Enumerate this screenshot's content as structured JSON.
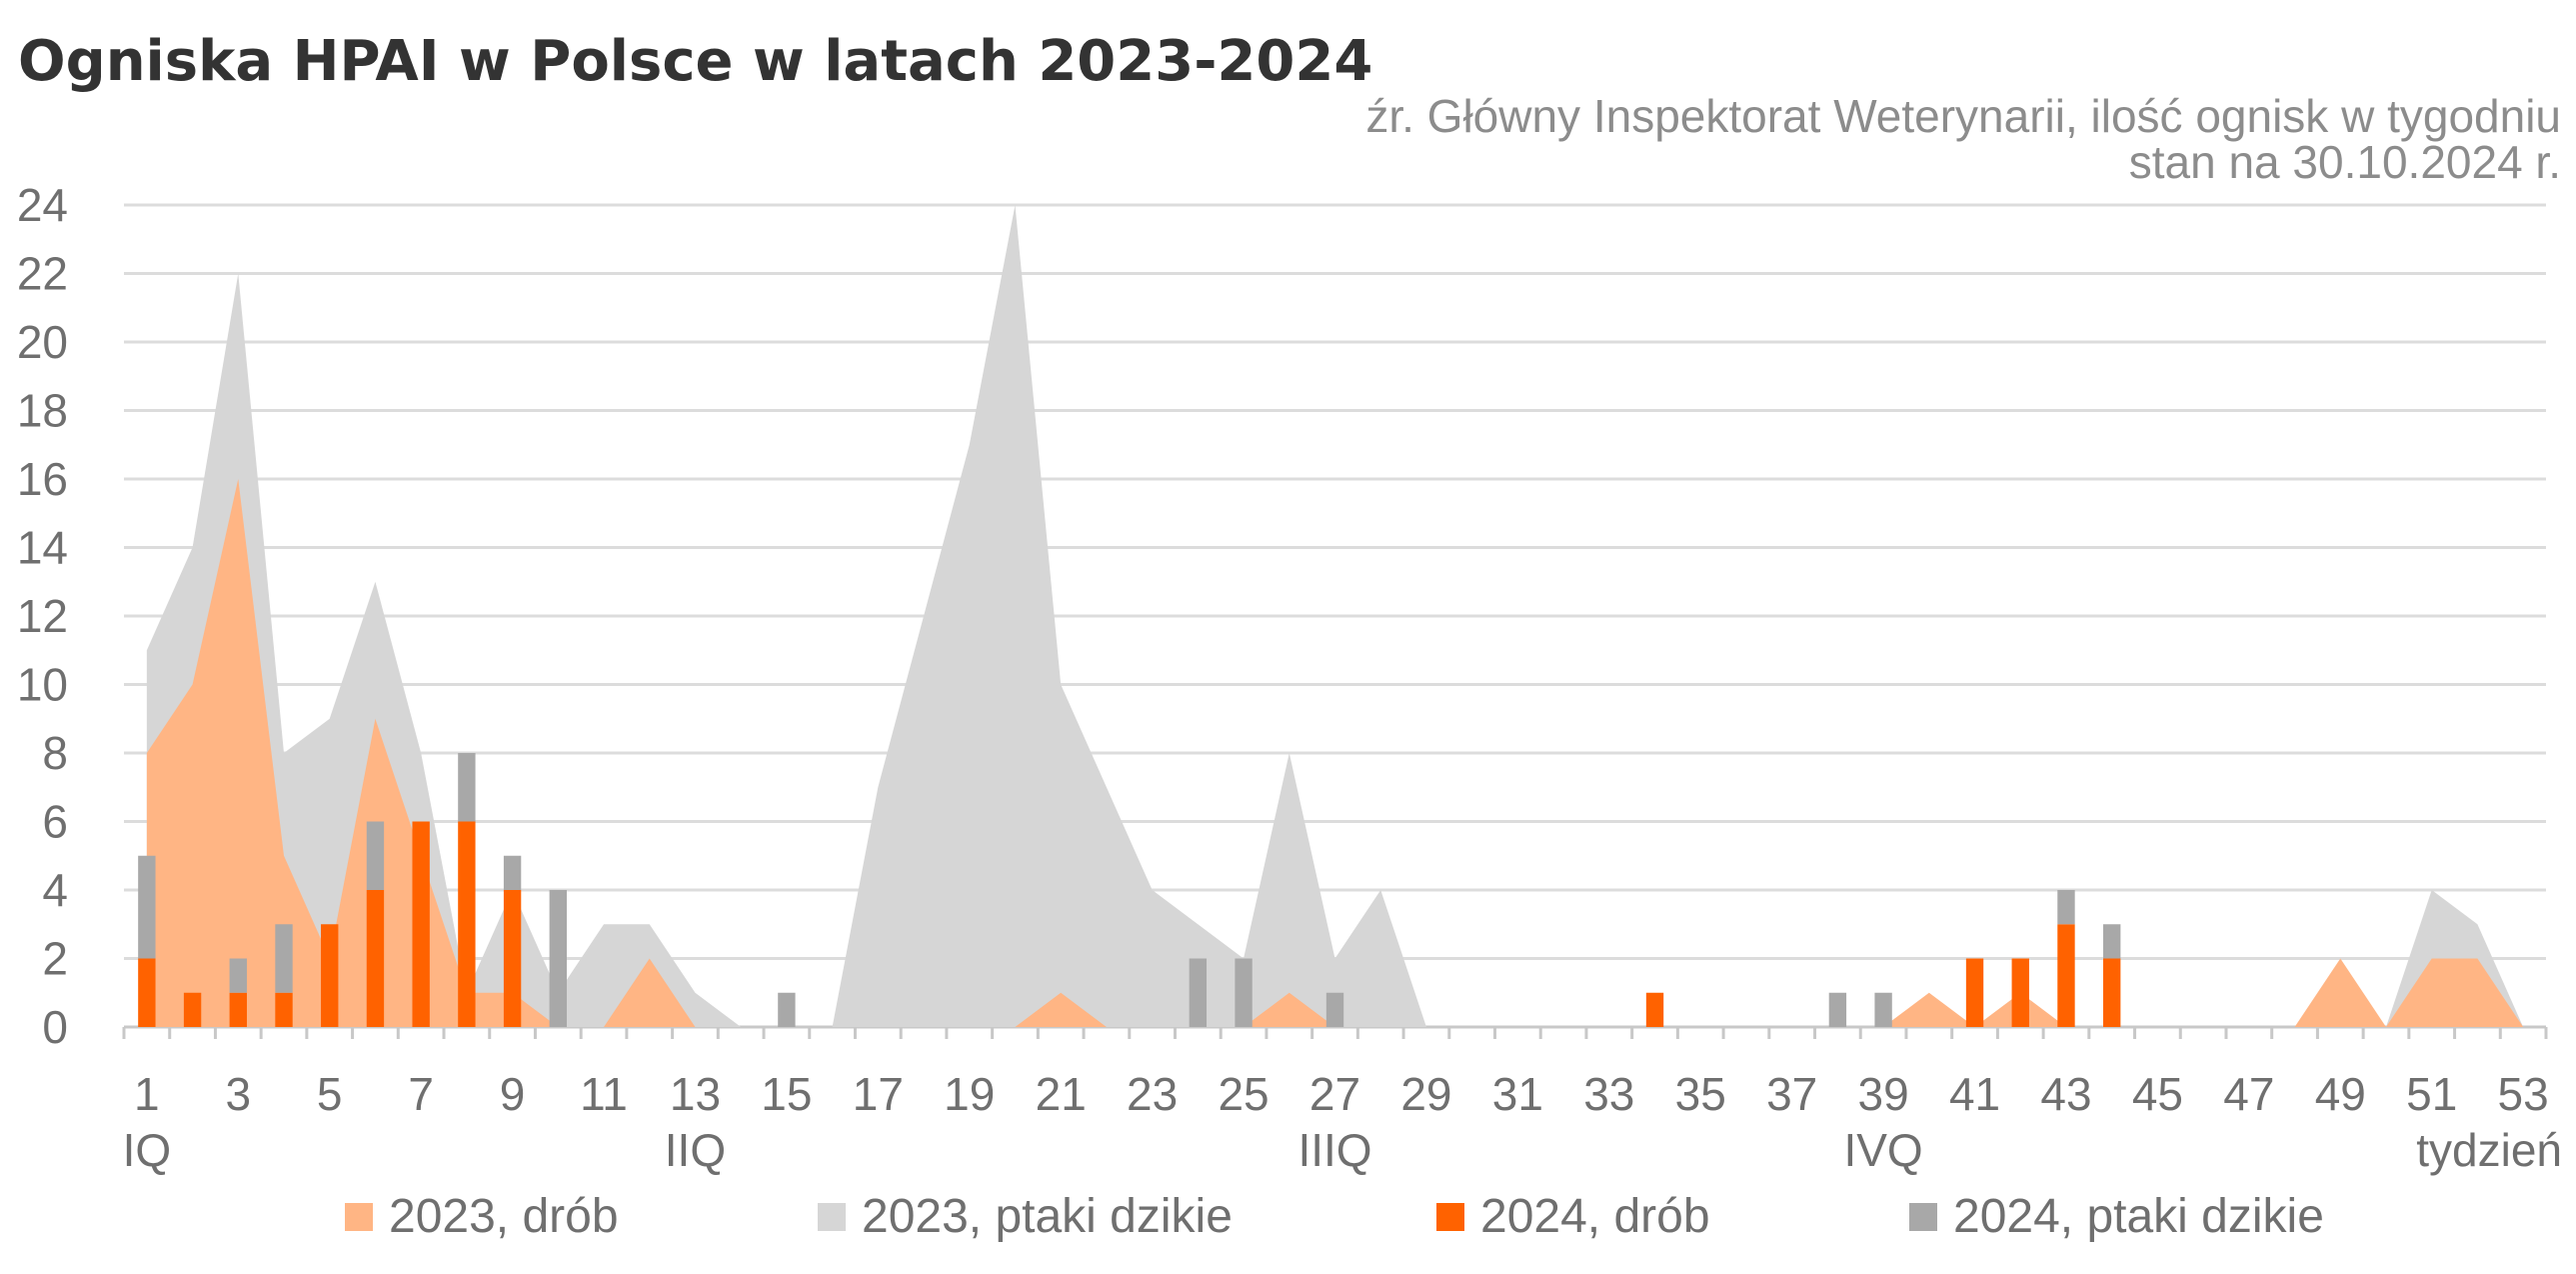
{
  "chart_data": {
    "type": "area+bar",
    "title": "Ogniska HPAI w Polsce w latach 2023-2024",
    "subtitle_lines": [
      "źr. Główny Inspektorat Weterynarii, ilość ognisk w tygodniu",
      "stan na 30.10.2024 r."
    ],
    "xlabel": "tydzień",
    "quarter_labels": [
      {
        "week": 1,
        "label": "IQ"
      },
      {
        "week": 13,
        "label": "IIQ"
      },
      {
        "week": 27,
        "label": "IIIQ"
      },
      {
        "week": 39,
        "label": "IVQ"
      }
    ],
    "weeks": [
      1,
      2,
      3,
      4,
      5,
      6,
      7,
      8,
      9,
      10,
      11,
      12,
      13,
      14,
      15,
      16,
      17,
      18,
      19,
      20,
      21,
      22,
      23,
      24,
      25,
      26,
      27,
      28,
      29,
      30,
      31,
      32,
      33,
      34,
      35,
      36,
      37,
      38,
      39,
      40,
      41,
      42,
      43,
      44,
      45,
      46,
      47,
      48,
      49,
      50,
      51,
      52,
      53
    ],
    "x_tick_labels": [
      "1",
      "3",
      "5",
      "7",
      "9",
      "11",
      "13",
      "15",
      "17",
      "19",
      "21",
      "23",
      "25",
      "27",
      "29",
      "31",
      "33",
      "35",
      "37",
      "39",
      "41",
      "43",
      "45",
      "47",
      "49",
      "51",
      "53"
    ],
    "ylim": [
      0,
      24
    ],
    "y_ticks": [
      "0",
      "2",
      "4",
      "6",
      "8",
      "10",
      "12",
      "14",
      "16",
      "18",
      "20",
      "22",
      "24"
    ],
    "colors": {
      "drob_2023": "#ffb584",
      "dzikie_2023": "#d6d6d6",
      "drob_2024": "#ff6200",
      "dzikie_2024": "#a8a8a8"
    },
    "series": [
      {
        "name": "2023, drób",
        "kind": "area",
        "values": [
          8,
          10,
          16,
          5,
          2,
          9,
          5,
          1,
          1,
          0,
          0,
          2,
          0,
          0,
          0,
          0,
          0,
          0,
          0,
          0,
          1,
          0,
          0,
          0,
          0,
          1,
          0,
          0,
          0,
          0,
          0,
          0,
          0,
          0,
          0,
          0,
          0,
          0,
          0,
          1,
          0,
          1,
          0,
          0,
          0,
          0,
          0,
          0,
          2,
          0,
          2,
          2,
          0
        ]
      },
      {
        "name": "2023, ptaki dzikie",
        "kind": "area",
        "values": [
          11,
          14,
          22,
          8,
          9,
          13,
          8,
          1,
          4,
          1,
          3,
          3,
          1,
          0,
          0,
          0,
          7,
          12,
          17,
          24,
          10,
          7,
          4,
          3,
          2,
          8,
          2,
          4,
          0,
          0,
          0,
          0,
          0,
          0,
          0,
          0,
          0,
          0,
          0,
          0,
          0,
          0,
          0,
          0,
          0,
          0,
          0,
          0,
          0,
          0,
          4,
          3,
          0
        ]
      },
      {
        "name": "2024, drób",
        "kind": "bar",
        "values": [
          2,
          1,
          1,
          1,
          3,
          4,
          6,
          6,
          4,
          0,
          0,
          0,
          0,
          0,
          0,
          0,
          0,
          0,
          0,
          0,
          0,
          0,
          0,
          0,
          0,
          0,
          0,
          0,
          0,
          0,
          0,
          0,
          0,
          1,
          0,
          0,
          0,
          0,
          0,
          0,
          2,
          2,
          3,
          2,
          0,
          0,
          0,
          0,
          0,
          0,
          0,
          0,
          0
        ]
      },
      {
        "name": "2024, ptaki dzikie",
        "kind": "bar",
        "values": [
          3,
          0,
          1,
          2,
          0,
          2,
          0,
          2,
          1,
          4,
          0,
          0,
          0,
          0,
          1,
          0,
          0,
          0,
          0,
          0,
          0,
          0,
          0,
          2,
          2,
          0,
          1,
          0,
          0,
          0,
          0,
          0,
          0,
          0,
          0,
          0,
          0,
          1,
          1,
          0,
          0,
          0,
          1,
          1,
          0,
          0,
          0,
          0,
          0,
          0,
          0,
          0,
          0
        ]
      }
    ],
    "legend": [
      "2023, drób",
      "2023, ptaki dzikie",
      "2024, drób",
      "2024, ptaki dzikie"
    ],
    "legend_position": "bottom",
    "grid": true
  }
}
